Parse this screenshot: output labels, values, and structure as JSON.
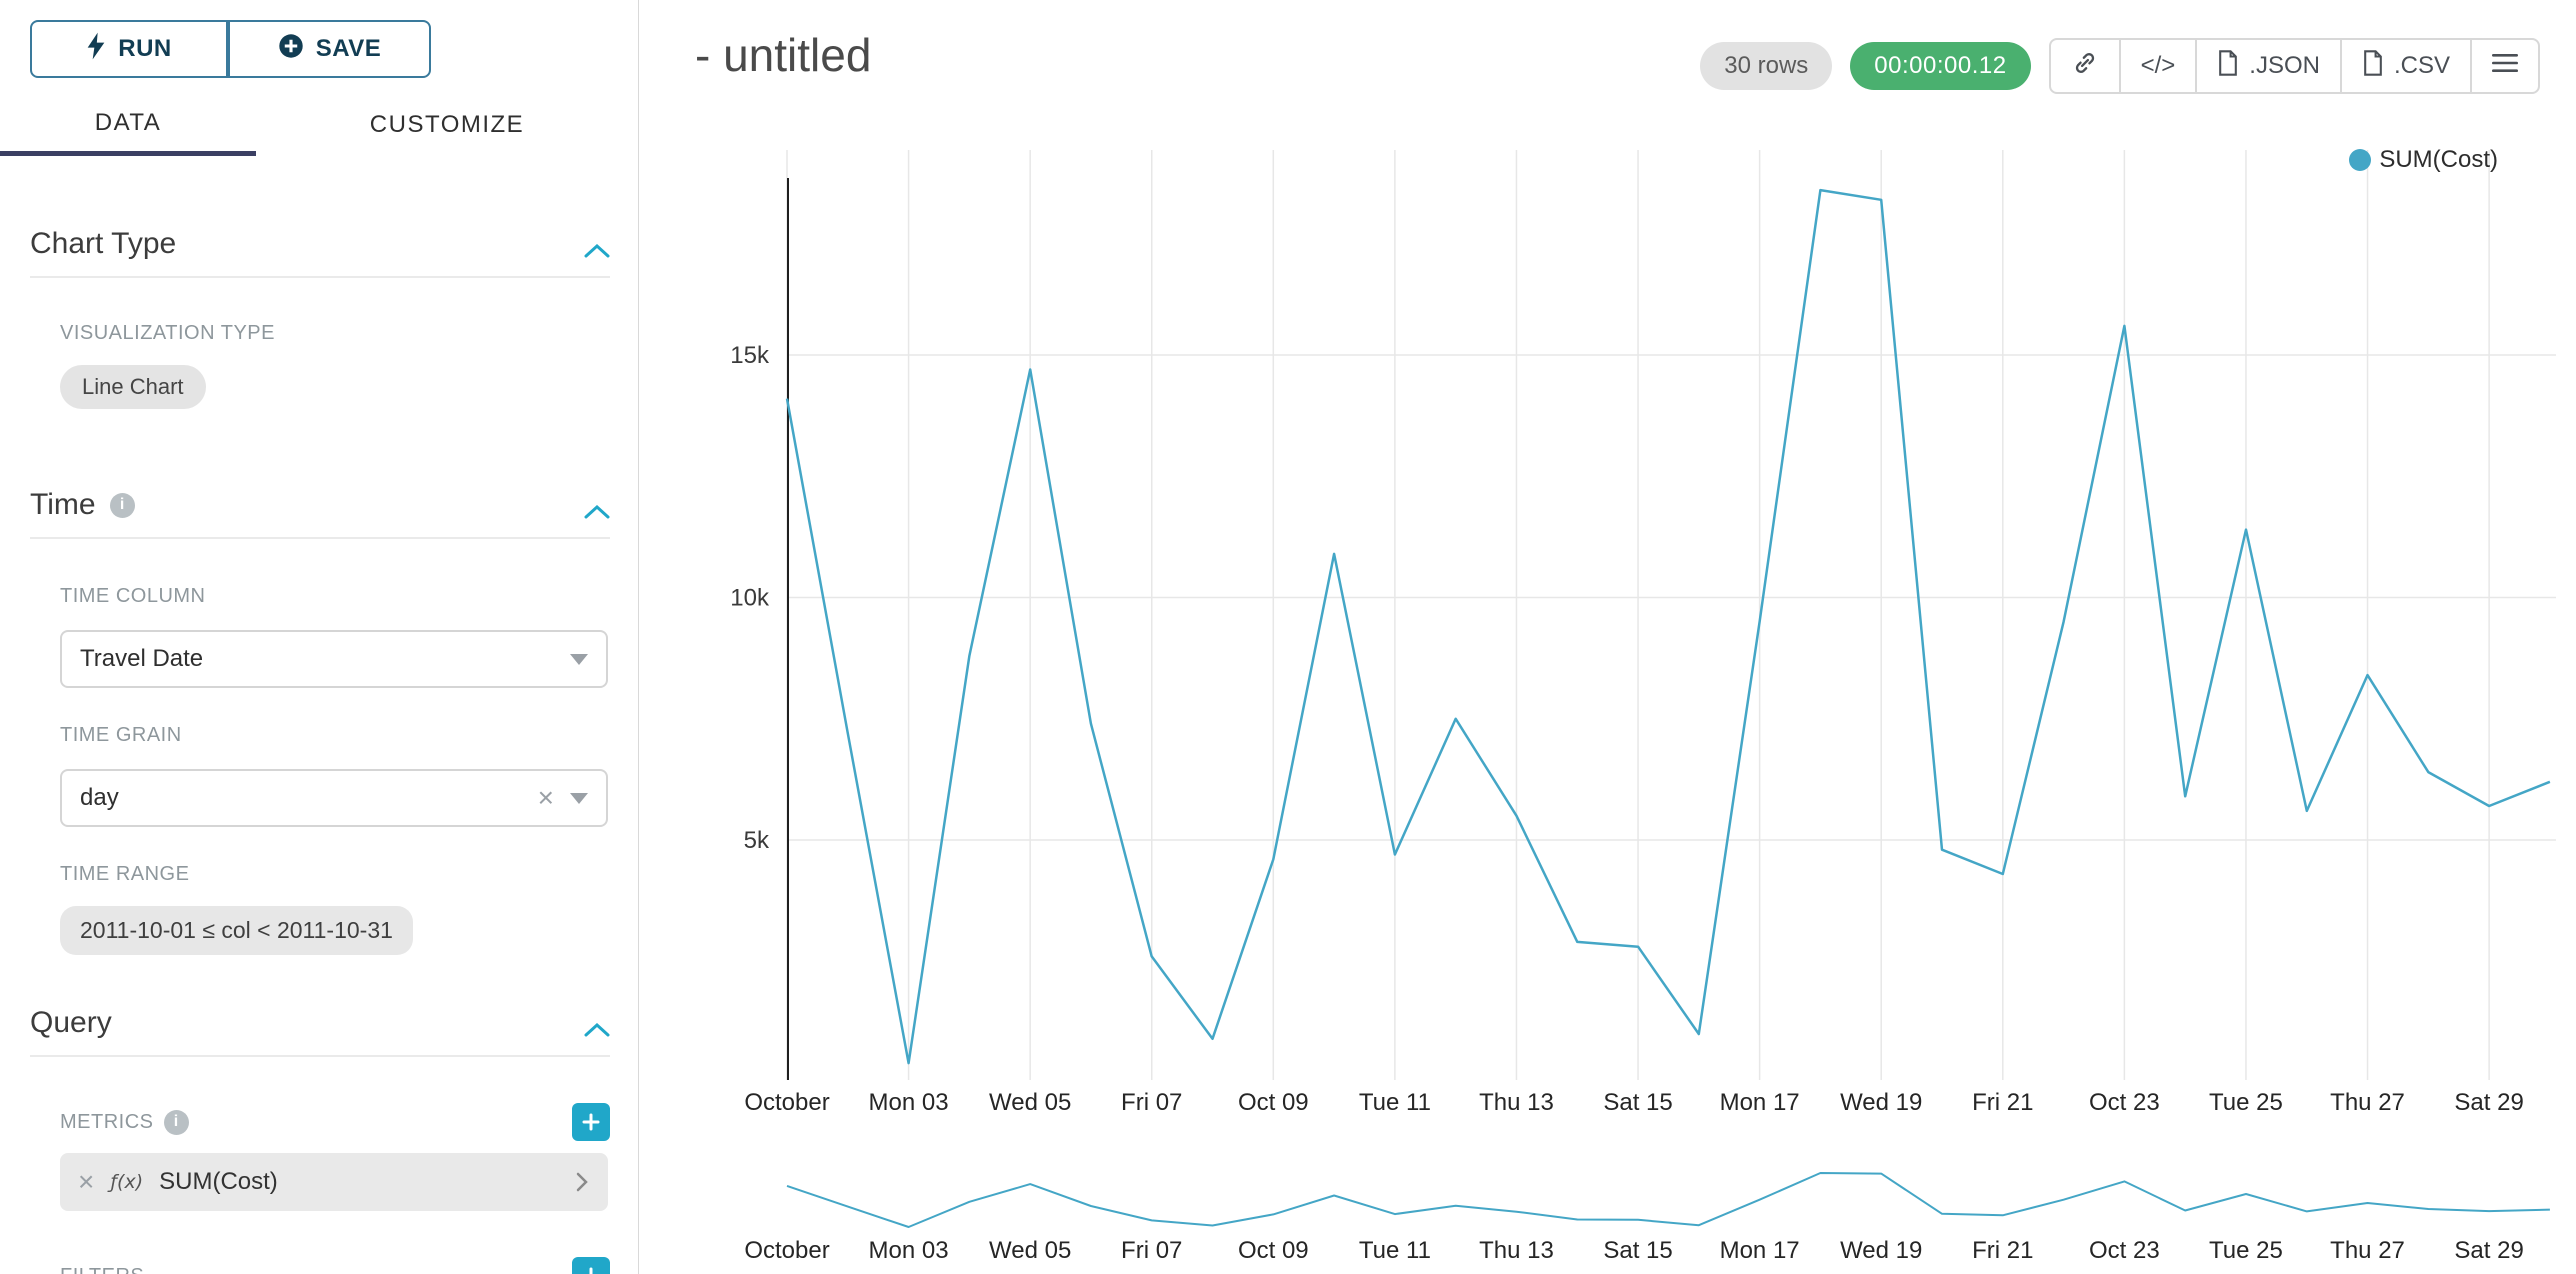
{
  "colors": {
    "accent": "#20a7c9",
    "timer_green": "#4ab06f",
    "line": "#44a6c6"
  },
  "sidebar": {
    "run_label": "RUN",
    "save_label": "SAVE",
    "tabs": [
      "DATA",
      "CUSTOMIZE"
    ],
    "chart_type": {
      "title": "Chart Type",
      "field_label": "VISUALIZATION TYPE",
      "value": "Line Chart"
    },
    "time": {
      "title": "Time",
      "column_label": "TIME COLUMN",
      "column_value": "Travel Date",
      "grain_label": "TIME GRAIN",
      "grain_value": "day",
      "range_label": "TIME RANGE",
      "range_value": "2011-10-01 ≤ col < 2011-10-31"
    },
    "query": {
      "title": "Query",
      "metrics_label": "METRICS",
      "metric_fx": "ƒ(x)",
      "metric_name": "SUM(Cost)",
      "filters_label": "FILTERS"
    }
  },
  "header": {
    "title": "- untitled",
    "rows_badge": "30 rows",
    "timer_badge": "00:00:00.12",
    "code_button": "</>",
    "json_button": ".JSON",
    "csv_button": ".CSV"
  },
  "legend": {
    "label": "SUM(Cost)"
  },
  "chart_data": {
    "type": "line",
    "title": "- untitled",
    "xlabel": "",
    "ylabel": "",
    "grid": true,
    "legend_position": "top-right",
    "line_color": "#44a6c6",
    "context_chart": true,
    "x": [
      "2011-10-01",
      "2011-10-02",
      "2011-10-03",
      "2011-10-04",
      "2011-10-05",
      "2011-10-06",
      "2011-10-07",
      "2011-10-08",
      "2011-10-09",
      "2011-10-10",
      "2011-10-11",
      "2011-10-12",
      "2011-10-13",
      "2011-10-14",
      "2011-10-15",
      "2011-10-16",
      "2011-10-17",
      "2011-10-18",
      "2011-10-19",
      "2011-10-20",
      "2011-10-21",
      "2011-10-22",
      "2011-10-23",
      "2011-10-24",
      "2011-10-25",
      "2011-10-26",
      "2011-10-27",
      "2011-10-28",
      "2011-10-29",
      "2011-10-30"
    ],
    "x_tick_labels": [
      "October",
      "Mon 03",
      "Wed 05",
      "Fri 07",
      "Oct 09",
      "Tue 11",
      "Thu 13",
      "Sat 15",
      "Mon 17",
      "Wed 19",
      "Fri 21",
      "Oct 23",
      "Tue 25",
      "Thu 27",
      "Sat 29"
    ],
    "series": [
      {
        "name": "SUM(Cost)",
        "values": [
          14100,
          7200,
          400,
          8800,
          14700,
          7400,
          2600,
          900,
          4600,
          10900,
          4700,
          7500,
          5500,
          2900,
          2800,
          1000,
          9500,
          18400,
          18200,
          4800,
          4300,
          9500,
          15600,
          5900,
          11400,
          5600,
          8400,
          6400,
          5700,
          6200
        ]
      }
    ],
    "y_ticks": [
      5000,
      10000,
      15000
    ],
    "y_tick_labels": [
      "5k",
      "10k",
      "15k"
    ],
    "ylim": [
      0,
      18500
    ]
  }
}
